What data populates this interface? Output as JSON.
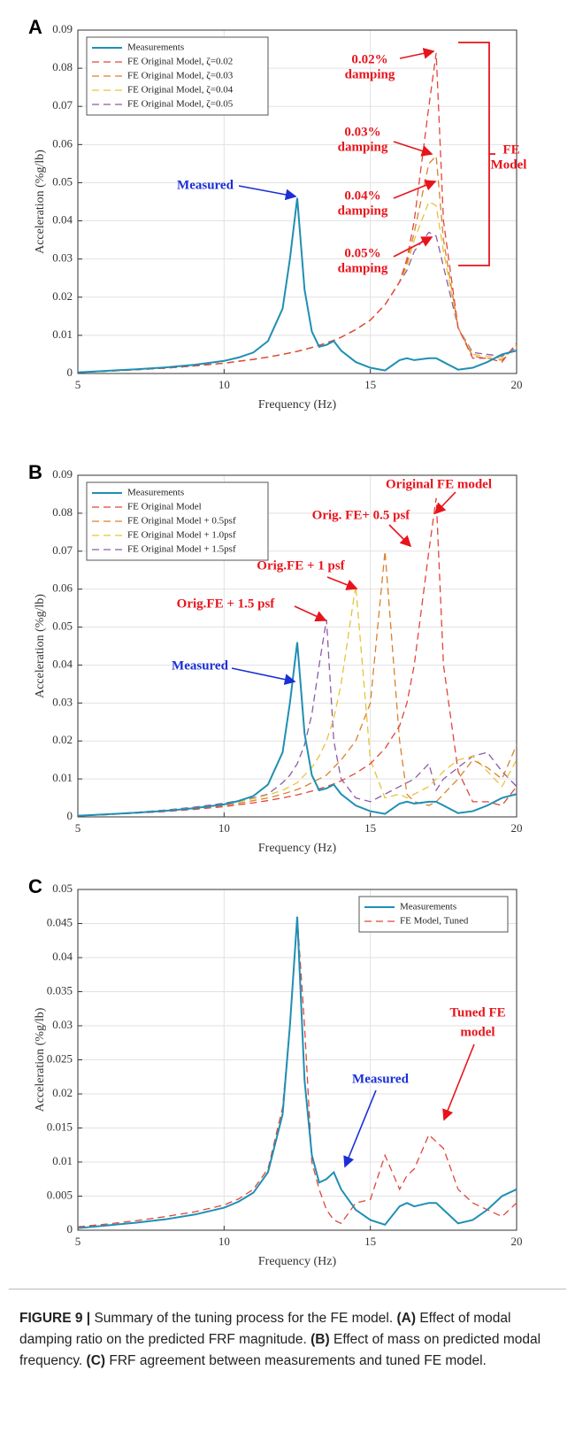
{
  "chart_data": [
    {
      "type": "line",
      "panel_label": "A",
      "xlabel": "Frequency (Hz)",
      "ylabel": "Acceleration (%g/lb)",
      "xlim": [
        5,
        20
      ],
      "xticks": [
        5,
        10,
        15,
        20
      ],
      "ylim": [
        0,
        0.09
      ],
      "yticks": [
        0,
        0.01,
        0.02,
        0.03,
        0.04,
        0.05,
        0.06,
        0.07,
        0.08,
        0.09
      ],
      "grid": true,
      "legend": "upper left",
      "x": [
        5,
        6,
        7,
        8,
        9,
        10,
        10.5,
        11,
        11.5,
        12,
        12.25,
        12.5,
        12.75,
        13,
        13.25,
        13.5,
        13.75,
        14,
        14.5,
        15,
        15.5,
        16,
        16.25,
        16.5,
        17,
        17.25,
        17.5,
        18,
        18.5,
        19,
        19.5,
        20
      ],
      "series": [
        {
          "name": "Measurements",
          "color": "#1f8fb3",
          "linestyle": "solid",
          "values": [
            0.0003,
            0.0007,
            0.0011,
            0.0016,
            0.0023,
            0.0033,
            0.0042,
            0.0055,
            0.0085,
            0.017,
            0.03,
            0.046,
            0.022,
            0.011,
            0.007,
            0.0075,
            0.0085,
            0.006,
            0.003,
            0.0015,
            0.0008,
            0.0035,
            0.004,
            0.0035,
            0.004,
            0.004,
            0.003,
            0.001,
            0.0015,
            0.003,
            0.005,
            0.006
          ]
        },
        {
          "name": "FE Original Model, ζ=0.02",
          "color": "#e0463c",
          "linestyle": "dashed",
          "values": [
            0.0003,
            0.0006,
            0.001,
            0.0014,
            0.002,
            0.0027,
            0.0032,
            0.0037,
            0.0043,
            0.005,
            0.0054,
            0.0058,
            0.0063,
            0.0068,
            0.0074,
            0.008,
            0.0087,
            0.0095,
            0.0115,
            0.014,
            0.018,
            0.024,
            0.03,
            0.04,
            0.07,
            0.084,
            0.04,
            0.012,
            0.004,
            0.004,
            0.003,
            0.008
          ]
        },
        {
          "name": "FE Original Model, ζ=0.03",
          "color": "#d9822b",
          "linestyle": "dashed",
          "values": [
            0.0003,
            0.0006,
            0.001,
            0.0014,
            0.002,
            0.0027,
            0.0032,
            0.0037,
            0.0043,
            0.005,
            0.0054,
            0.0058,
            0.0063,
            0.0068,
            0.0074,
            0.008,
            0.0087,
            0.0095,
            0.0115,
            0.014,
            0.018,
            0.024,
            0.029,
            0.037,
            0.055,
            0.057,
            0.035,
            0.012,
            0.0045,
            0.004,
            0.0035,
            0.0075
          ]
        },
        {
          "name": "FE Original Model, ζ=0.04",
          "color": "#e8c33a",
          "linestyle": "dashed",
          "values": [
            0.0003,
            0.0006,
            0.001,
            0.0014,
            0.002,
            0.0027,
            0.0032,
            0.0037,
            0.0043,
            0.005,
            0.0054,
            0.0058,
            0.0063,
            0.0068,
            0.0074,
            0.008,
            0.0087,
            0.0095,
            0.0115,
            0.014,
            0.018,
            0.024,
            0.028,
            0.035,
            0.045,
            0.044,
            0.032,
            0.012,
            0.005,
            0.0045,
            0.004,
            0.007
          ]
        },
        {
          "name": "FE Original Model, ζ=0.05",
          "color": "#8e5aa8",
          "linestyle": "dashed",
          "values": [
            0.0003,
            0.0006,
            0.001,
            0.0014,
            0.002,
            0.0027,
            0.0032,
            0.0037,
            0.0043,
            0.005,
            0.0054,
            0.0058,
            0.0063,
            0.0068,
            0.0074,
            0.008,
            0.0087,
            0.0095,
            0.0115,
            0.014,
            0.018,
            0.024,
            0.027,
            0.032,
            0.037,
            0.036,
            0.028,
            0.012,
            0.0055,
            0.005,
            0.0045,
            0.0068
          ]
        }
      ],
      "annotations": [
        {
          "text": [
            "0.02%",
            "damping"
          ],
          "color": "#e8141c"
        },
        {
          "text": [
            "0.03%",
            "damping"
          ],
          "color": "#e8141c"
        },
        {
          "text": [
            "0.04%",
            "damping"
          ],
          "color": "#e8141c"
        },
        {
          "text": [
            "0.05%",
            "damping"
          ],
          "color": "#e8141c"
        },
        {
          "text": [
            "FE",
            "Model"
          ],
          "color": "#e8141c"
        },
        {
          "text": [
            "Measured"
          ],
          "color": "#1a2fd6"
        }
      ]
    },
    {
      "type": "line",
      "panel_label": "B",
      "xlabel": "Frequency (Hz)",
      "ylabel": "Acceleration (%g/lb)",
      "xlim": [
        5,
        20
      ],
      "xticks": [
        5,
        10,
        15,
        20
      ],
      "ylim": [
        0,
        0.09
      ],
      "yticks": [
        0,
        0.01,
        0.02,
        0.03,
        0.04,
        0.05,
        0.06,
        0.07,
        0.08,
        0.09
      ],
      "grid": true,
      "legend": "upper left",
      "x": [
        5,
        6,
        7,
        8,
        9,
        10,
        10.5,
        11,
        11.5,
        12,
        12.25,
        12.5,
        12.75,
        13,
        13.25,
        13.5,
        13.75,
        14,
        14.5,
        15,
        15.5,
        16,
        16.25,
        16.5,
        17,
        17.25,
        17.5,
        18,
        18.5,
        19,
        19.5,
        20
      ],
      "series": [
        {
          "name": "Measurements",
          "color": "#1f8fb3",
          "linestyle": "solid",
          "values": [
            0.0003,
            0.0007,
            0.0011,
            0.0016,
            0.0023,
            0.0033,
            0.0042,
            0.0055,
            0.0085,
            0.017,
            0.03,
            0.046,
            0.022,
            0.011,
            0.007,
            0.0075,
            0.0085,
            0.006,
            0.003,
            0.0015,
            0.0008,
            0.0035,
            0.004,
            0.0035,
            0.004,
            0.004,
            0.003,
            0.001,
            0.0015,
            0.003,
            0.005,
            0.006
          ]
        },
        {
          "name": "FE Original Model",
          "color": "#e0463c",
          "linestyle": "dashed",
          "values": [
            0.0003,
            0.0006,
            0.001,
            0.0014,
            0.002,
            0.0027,
            0.0032,
            0.0037,
            0.0043,
            0.005,
            0.0054,
            0.0058,
            0.0063,
            0.0068,
            0.0074,
            0.008,
            0.0087,
            0.0095,
            0.0115,
            0.014,
            0.018,
            0.024,
            0.03,
            0.04,
            0.07,
            0.084,
            0.04,
            0.012,
            0.004,
            0.004,
            0.003,
            0.008
          ]
        },
        {
          "name": "FE Original Model + 0.5psf",
          "color": "#d9822b",
          "linestyle": "dashed",
          "values": [
            0.0003,
            0.0006,
            0.0011,
            0.0016,
            0.0022,
            0.003,
            0.0036,
            0.0043,
            0.005,
            0.006,
            0.0066,
            0.0072,
            0.008,
            0.009,
            0.01,
            0.011,
            0.013,
            0.015,
            0.02,
            0.03,
            0.07,
            0.02,
            0.006,
            0.004,
            0.003,
            0.004,
            0.006,
            0.01,
            0.015,
            0.013,
            0.01,
            0.019
          ]
        },
        {
          "name": "FE Original Model + 1.0psf",
          "color": "#e8c33a",
          "linestyle": "dashed",
          "values": [
            0.0003,
            0.0007,
            0.0012,
            0.0017,
            0.0024,
            0.0033,
            0.004,
            0.0048,
            0.0058,
            0.007,
            0.008,
            0.009,
            0.011,
            0.013,
            0.016,
            0.02,
            0.026,
            0.035,
            0.061,
            0.015,
            0.005,
            0.006,
            0.005,
            0.006,
            0.008,
            0.01,
            0.012,
            0.015,
            0.016,
            0.012,
            0.008,
            0.015
          ]
        },
        {
          "name": "FE Original Model + 1.5psf",
          "color": "#8e5aa8",
          "linestyle": "dashed",
          "values": [
            0.0003,
            0.0007,
            0.0012,
            0.0018,
            0.0026,
            0.0036,
            0.0043,
            0.005,
            0.006,
            0.009,
            0.011,
            0.014,
            0.019,
            0.027,
            0.04,
            0.052,
            0.02,
            0.01,
            0.005,
            0.004,
            0.006,
            0.008,
            0.009,
            0.01,
            0.014,
            0.007,
            0.01,
            0.013,
            0.016,
            0.017,
            0.012,
            0.008
          ]
        }
      ],
      "annotations": [
        {
          "text": [
            "Original FE model"
          ],
          "color": "#e8141c"
        },
        {
          "text": [
            "Orig. FE+ 0.5 psf"
          ],
          "color": "#e8141c"
        },
        {
          "text": [
            "Orig.FE + 1 psf"
          ],
          "color": "#e8141c"
        },
        {
          "text": [
            "Orig.FE + 1.5 psf"
          ],
          "color": "#e8141c"
        },
        {
          "text": [
            "Measured"
          ],
          "color": "#1a2fd6"
        }
      ]
    },
    {
      "type": "line",
      "panel_label": "C",
      "xlabel": "Frequency (Hz)",
      "ylabel": "Acceleration (%g/lb)",
      "xlim": [
        5,
        20
      ],
      "xticks": [
        5,
        10,
        15,
        20
      ],
      "ylim": [
        0,
        0.05
      ],
      "yticks": [
        0,
        0.005,
        0.01,
        0.015,
        0.02,
        0.025,
        0.03,
        0.035,
        0.04,
        0.045,
        0.05
      ],
      "grid": true,
      "legend": "upper right",
      "x": [
        5,
        6,
        7,
        8,
        9,
        10,
        10.5,
        11,
        11.5,
        12,
        12.25,
        12.5,
        12.75,
        13,
        13.25,
        13.5,
        13.75,
        14,
        14.5,
        15,
        15.5,
        16,
        16.25,
        16.5,
        17,
        17.25,
        17.5,
        18,
        18.5,
        19,
        19.5,
        20
      ],
      "series": [
        {
          "name": "Measurements",
          "color": "#1f8fb3",
          "linestyle": "solid",
          "values": [
            0.0003,
            0.0007,
            0.0011,
            0.0016,
            0.0023,
            0.0033,
            0.0042,
            0.0055,
            0.0085,
            0.017,
            0.03,
            0.046,
            0.022,
            0.011,
            0.007,
            0.0075,
            0.0085,
            0.006,
            0.003,
            0.0015,
            0.0008,
            0.0035,
            0.004,
            0.0035,
            0.004,
            0.004,
            0.003,
            0.001,
            0.0015,
            0.003,
            0.005,
            0.006
          ]
        },
        {
          "name": "FE Model, Tuned",
          "color": "#e0463c",
          "linestyle": "dashed",
          "values": [
            0.0005,
            0.0009,
            0.0014,
            0.002,
            0.0027,
            0.0037,
            0.0046,
            0.006,
            0.009,
            0.018,
            0.03,
            0.046,
            0.03,
            0.01,
            0.006,
            0.003,
            0.0015,
            0.001,
            0.004,
            0.0045,
            0.011,
            0.006,
            0.008,
            0.009,
            0.014,
            0.013,
            0.012,
            0.006,
            0.004,
            0.003,
            0.002,
            0.004
          ]
        }
      ],
      "annotations": [
        {
          "text": [
            "Tuned FE",
            "model"
          ],
          "color": "#e8141c"
        },
        {
          "text": [
            "Measured"
          ],
          "color": "#1a2fd6"
        }
      ]
    }
  ],
  "caption": [
    "FIGURE 9 |",
    "Summary of the tuning process for the FE model.",
    "(A)",
    "Effect of modal damping ratio on the predicted FRF magnitude.",
    "(B)",
    "Effect of mass on predicted modal frequency.",
    "(C)",
    "FRF agreement between measurements and tuned FE model."
  ]
}
